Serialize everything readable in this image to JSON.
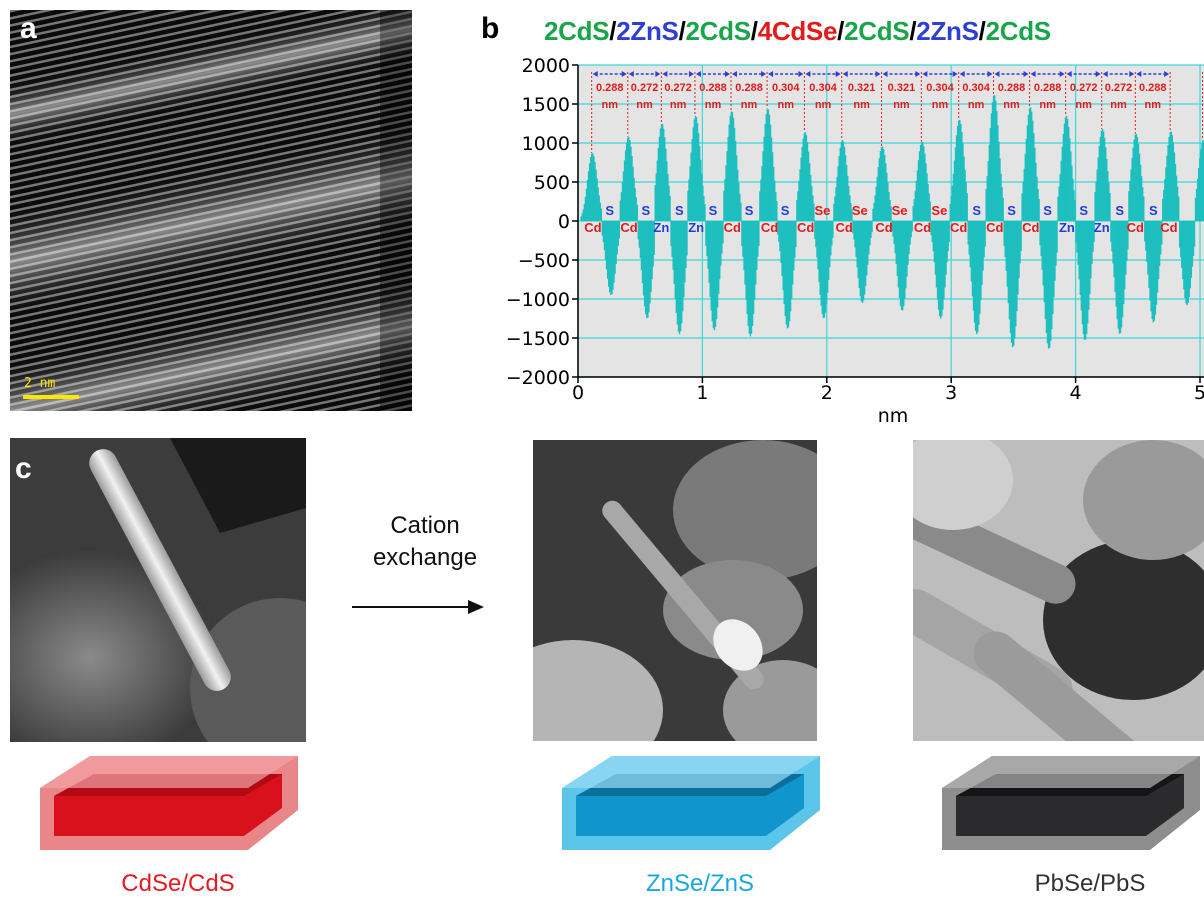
{
  "panels": {
    "a": {
      "letter": "a",
      "scale_bar": "2 nm"
    },
    "b": {
      "letter": "b"
    },
    "c": {
      "letter": "c"
    }
  },
  "layer_title": [
    {
      "text": "2CdS",
      "color": "#1aa54a"
    },
    {
      "text": "/",
      "color": "#000000"
    },
    {
      "text": "2ZnS",
      "color": "#2f3fd6"
    },
    {
      "text": "/",
      "color": "#000000"
    },
    {
      "text": "2CdS",
      "color": "#1aa54a"
    },
    {
      "text": "/",
      "color": "#000000"
    },
    {
      "text": "4CdSe",
      "color": "#e31b1b"
    },
    {
      "text": "/",
      "color": "#000000"
    },
    {
      "text": "2CdS",
      "color": "#1aa54a"
    },
    {
      "text": "/",
      "color": "#000000"
    },
    {
      "text": "2ZnS",
      "color": "#2f3fd6"
    },
    {
      "text": "/",
      "color": "#000000"
    },
    {
      "text": "2CdS",
      "color": "#1aa54a"
    }
  ],
  "chart_data": {
    "type": "bar",
    "title": "2CdS/2ZnS/2CdS/4CdSe/2CdS/2ZnS/2CdS",
    "xlabel": "nm",
    "ylabel": "",
    "xlim": [
      0,
      5
    ],
    "ylim": [
      -2000,
      2000
    ],
    "xticks": [
      0,
      1,
      2,
      3,
      4,
      5
    ],
    "yticks": [
      -2000,
      -1500,
      -1000,
      -500,
      0,
      500,
      1000,
      1500,
      2000
    ],
    "grid": true,
    "series_color": "#1fbfbf",
    "peak_positions_nm": [
      0.11,
      0.4,
      0.67,
      0.94,
      1.23,
      1.52,
      1.82,
      2.12,
      2.44,
      2.76,
      3.06,
      3.34,
      3.63,
      3.92,
      4.21,
      4.48,
      4.76,
      5.02
    ],
    "peak_heights": [
      870,
      1080,
      1250,
      1350,
      1410,
      1440,
      1140,
      1040,
      960,
      1020,
      1300,
      1620,
      1460,
      1350,
      1180,
      1120,
      1150,
      1040
    ],
    "trough_positions_nm": [
      0.26,
      0.55,
      0.81,
      1.09,
      1.38,
      1.68,
      1.97,
      2.28,
      2.6,
      2.91,
      3.2,
      3.49,
      3.78,
      4.07,
      4.35,
      4.62,
      4.89
    ],
    "trough_depths": [
      -950,
      -1250,
      -1450,
      -1400,
      -1480,
      -1380,
      -1250,
      -1050,
      -1150,
      -1250,
      -1450,
      -1620,
      -1640,
      -1530,
      -1450,
      -1300,
      -1080
    ],
    "spacings_nm": [
      "0.288",
      "0.272",
      "0.272",
      "0.288",
      "0.288",
      "0.304",
      "0.304",
      "0.321",
      "0.321",
      "0.304",
      "0.304",
      "0.288",
      "0.288",
      "0.272",
      "0.272",
      "0.288"
    ],
    "spacing_unit": "nm",
    "upper_atom_labels": [
      "S",
      "S",
      "S",
      "S",
      "S",
      "S",
      "Se",
      "Se",
      "Se",
      "Se",
      "S",
      "S",
      "S",
      "S",
      "S",
      "S"
    ],
    "lower_atom_labels": [
      "Cd",
      "Cd",
      "Zn",
      "Zn",
      "Cd",
      "Cd",
      "Cd",
      "Cd",
      "Cd",
      "Cd",
      "Cd",
      "Cd",
      "Cd",
      "Zn",
      "Zn",
      "Cd",
      "Cd"
    ],
    "label_colors": {
      "anion_S": "#1f3fd6",
      "anion_Se": "#e31b1b",
      "cation_Cd": "#e31b1b",
      "cation_Zn": "#1f3fd6"
    }
  },
  "transformation": {
    "arrow_label_line1": "Cation",
    "arrow_label_line2": "exchange"
  },
  "products": [
    {
      "name": "CdSe/CdS",
      "shell_color": "#e86a6e",
      "core_color": "#d9111d",
      "label_color": "#e31b23"
    },
    {
      "name": "ZnSe/ZnS",
      "shell_color": "#4ec0e6",
      "core_color": "#0f8ec4",
      "label_color": "#1aa7dd"
    },
    {
      "name": "PbSe/PbS",
      "shell_color": "#9a9a9a",
      "core_color": "#2b2b2e",
      "label_color": "#333333"
    }
  ]
}
